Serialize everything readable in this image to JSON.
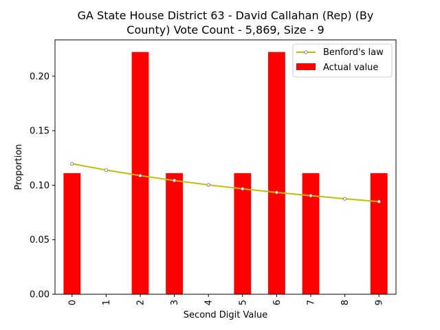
{
  "chart_data": {
    "type": "bar",
    "title_lines": [
      "GA State House District 63 - David Callahan (Rep) (By",
      "County) Vote Count - 5,869, Size - 9"
    ],
    "xlabel": "Second Digit Value",
    "ylabel": "Proportion",
    "categories": [
      "0",
      "1",
      "2",
      "3",
      "4",
      "5",
      "6",
      "7",
      "8",
      "9"
    ],
    "ylim": [
      0,
      0.2333
    ],
    "yticks": [
      0.0,
      0.05,
      0.1,
      0.15,
      0.2
    ],
    "ytick_labels": [
      "0.00",
      "0.05",
      "0.10",
      "0.15",
      "0.20"
    ],
    "series": [
      {
        "name": "Actual value",
        "kind": "bar",
        "color": "#ff0000",
        "values": [
          0.1111,
          0,
          0.2222,
          0.1111,
          0,
          0.1111,
          0.2222,
          0.1111,
          0,
          0.1111
        ]
      },
      {
        "name": "Benford's law",
        "kind": "line",
        "color": "#bfbf00",
        "values": [
          0.1197,
          0.1139,
          0.1088,
          0.1043,
          0.1003,
          0.0967,
          0.0934,
          0.0904,
          0.0876,
          0.085
        ]
      }
    ],
    "legend": {
      "position": "top-right",
      "entries": [
        "Benford's law",
        "Actual value"
      ]
    }
  }
}
